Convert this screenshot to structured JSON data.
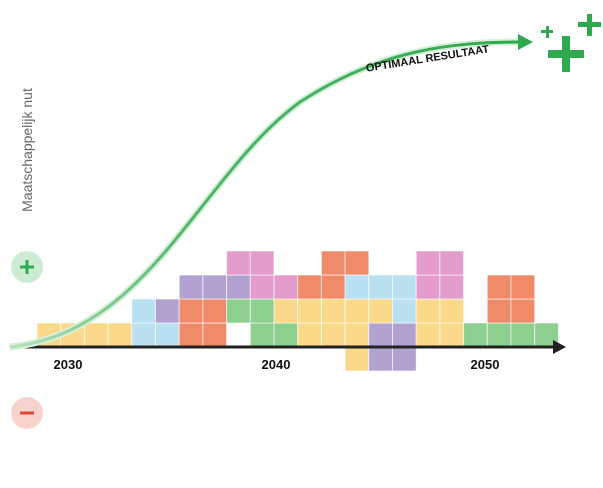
{
  "axis_label": "Maatschappelijk nut",
  "curve_label": "OPTIMAAL RESULTAAT",
  "years": [
    "2030",
    "2040",
    "2050"
  ]
}
